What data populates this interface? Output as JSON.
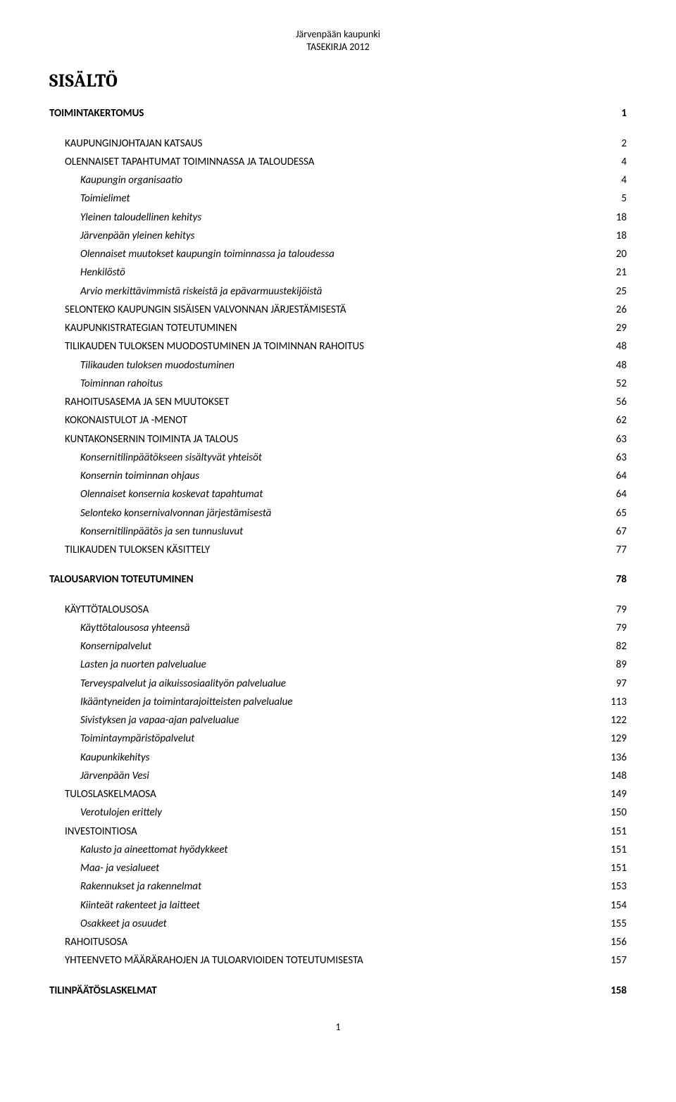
{
  "header": {
    "line1": "Järvenpään kaupunki",
    "line2": "TASEKIRJA 2012"
  },
  "title": "SISÄLTÖ",
  "footer": "1",
  "colors": {
    "background": "#ffffff",
    "text": "#000000"
  },
  "typography": {
    "body_font": "Calibri, Arial, sans-serif",
    "title_font": "Cambria, Times New Roman, serif",
    "title_size_pt": 20,
    "body_size_pt": 11
  },
  "toc": [
    {
      "label": "TOIMINTAKERTOMUS",
      "page": "1",
      "level": 1,
      "italic": false,
      "spacer_before": false
    },
    {
      "label": "KAUPUNGINJOHTAJAN KATSAUS",
      "page": "2",
      "level": 2,
      "italic": false,
      "spacer_before": true
    },
    {
      "label": "OLENNAISET TAPAHTUMAT TOIMINNASSA JA TALOUDESSA",
      "page": "4",
      "level": 2,
      "italic": false,
      "spacer_before": false
    },
    {
      "label": "Kaupungin organisaatio",
      "page": "4",
      "level": 3,
      "italic": true,
      "spacer_before": false
    },
    {
      "label": "Toimielimet",
      "page": "5",
      "level": 3,
      "italic": true,
      "spacer_before": false
    },
    {
      "label": "Yleinen taloudellinen kehitys",
      "page": "18",
      "level": 3,
      "italic": true,
      "spacer_before": false
    },
    {
      "label": "Järvenpään yleinen kehitys",
      "page": "18",
      "level": 3,
      "italic": true,
      "spacer_before": false
    },
    {
      "label": "Olennaiset muutokset kaupungin toiminnassa ja taloudessa",
      "page": "20",
      "level": 3,
      "italic": true,
      "spacer_before": false
    },
    {
      "label": "Henkilöstö",
      "page": "21",
      "level": 3,
      "italic": true,
      "spacer_before": false
    },
    {
      "label": "Arvio merkittävimmistä riskeistä ja epävarmuustekijöistä",
      "page": "25",
      "level": 3,
      "italic": true,
      "spacer_before": false
    },
    {
      "label": "SELONTEKO KAUPUNGIN SISÄISEN VALVONNAN JÄRJESTÄMISESTÄ",
      "page": "26",
      "level": 2,
      "italic": false,
      "spacer_before": false
    },
    {
      "label": "KAUPUNKISTRATEGIAN TOTEUTUMINEN",
      "page": "29",
      "level": 2,
      "italic": false,
      "spacer_before": false
    },
    {
      "label": "TILIKAUDEN TULOKSEN MUODOSTUMINEN JA TOIMINNAN RAHOITUS",
      "page": "48",
      "level": 2,
      "italic": false,
      "spacer_before": false
    },
    {
      "label": "Tilikauden tuloksen muodostuminen",
      "page": "48",
      "level": 3,
      "italic": true,
      "spacer_before": false
    },
    {
      "label": "Toiminnan rahoitus",
      "page": "52",
      "level": 3,
      "italic": true,
      "spacer_before": false
    },
    {
      "label": "RAHOITUSASEMA JA SEN MUUTOKSET",
      "page": "56",
      "level": 2,
      "italic": false,
      "spacer_before": false
    },
    {
      "label": "KOKONAISTULOT JA -MENOT",
      "page": "62",
      "level": 2,
      "italic": false,
      "spacer_before": false
    },
    {
      "label": "KUNTAKONSERNIN TOIMINTA JA TALOUS",
      "page": "63",
      "level": 2,
      "italic": false,
      "spacer_before": false
    },
    {
      "label": "Konsernitilinpäätökseen sisältyvät yhteisöt",
      "page": "63",
      "level": 3,
      "italic": true,
      "spacer_before": false
    },
    {
      "label": "Konsernin toiminnan ohjaus",
      "page": "64",
      "level": 3,
      "italic": true,
      "spacer_before": false
    },
    {
      "label": "Olennaiset konsernia koskevat tapahtumat",
      "page": "64",
      "level": 3,
      "italic": true,
      "spacer_before": false
    },
    {
      "label": "Selonteko konsernivalvonnan järjestämisestä",
      "page": "65",
      "level": 3,
      "italic": true,
      "spacer_before": false
    },
    {
      "label": "Konsernitilinpäätös ja sen tunnusluvut",
      "page": "67",
      "level": 3,
      "italic": true,
      "spacer_before": false
    },
    {
      "label": "TILIKAUDEN TULOKSEN KÄSITTELY",
      "page": "77",
      "level": 2,
      "italic": false,
      "spacer_before": false
    },
    {
      "label": "TALOUSARVION TOTEUTUMINEN",
      "page": "78",
      "level": 1,
      "italic": false,
      "spacer_before": true
    },
    {
      "label": "KÄYTTÖTALOUSOSA",
      "page": "79",
      "level": 2,
      "italic": false,
      "spacer_before": true
    },
    {
      "label": "Käyttötalousosa yhteensä",
      "page": "79",
      "level": 3,
      "italic": true,
      "spacer_before": false
    },
    {
      "label": "Konsernipalvelut",
      "page": "82",
      "level": 3,
      "italic": true,
      "spacer_before": false
    },
    {
      "label": "Lasten ja nuorten palvelualue",
      "page": "89",
      "level": 3,
      "italic": true,
      "spacer_before": false
    },
    {
      "label": "Terveyspalvelut ja aikuissosiaalityön palvelualue",
      "page": "97",
      "level": 3,
      "italic": true,
      "spacer_before": false
    },
    {
      "label": "Ikääntyneiden ja toimintarajoitteisten palvelualue",
      "page": "113",
      "level": 3,
      "italic": true,
      "spacer_before": false
    },
    {
      "label": "Sivistyksen ja vapaa-ajan palvelualue",
      "page": "122",
      "level": 3,
      "italic": true,
      "spacer_before": false
    },
    {
      "label": "Toimintaympäristöpalvelut",
      "page": "129",
      "level": 3,
      "italic": true,
      "spacer_before": false
    },
    {
      "label": "Kaupunkikehitys",
      "page": "136",
      "level": 3,
      "italic": true,
      "spacer_before": false
    },
    {
      "label": "Järvenpään Vesi",
      "page": "148",
      "level": 3,
      "italic": true,
      "spacer_before": false
    },
    {
      "label": "TULOSLASKELMAOSA",
      "page": "149",
      "level": 2,
      "italic": false,
      "spacer_before": false
    },
    {
      "label": "Verotulojen erittely",
      "page": "150",
      "level": 3,
      "italic": true,
      "spacer_before": false
    },
    {
      "label": "INVESTOINTIOSA",
      "page": "151",
      "level": 2,
      "italic": false,
      "spacer_before": false
    },
    {
      "label": "Kalusto ja aineettomat hyödykkeet",
      "page": "151",
      "level": 3,
      "italic": true,
      "spacer_before": false
    },
    {
      "label": "Maa- ja vesialueet",
      "page": "151",
      "level": 3,
      "italic": true,
      "spacer_before": false
    },
    {
      "label": "Rakennukset ja rakennelmat",
      "page": "153",
      "level": 3,
      "italic": true,
      "spacer_before": false
    },
    {
      "label": "Kiinteät rakenteet ja laitteet",
      "page": "154",
      "level": 3,
      "italic": true,
      "spacer_before": false
    },
    {
      "label": "Osakkeet ja osuudet",
      "page": "155",
      "level": 3,
      "italic": true,
      "spacer_before": false
    },
    {
      "label": "RAHOITUSOSA",
      "page": "156",
      "level": 2,
      "italic": false,
      "spacer_before": false
    },
    {
      "label": "YHTEENVETO MÄÄRÄRAHOJEN JA TULOARVIOIDEN TOTEUTUMISESTA",
      "page": "157",
      "level": 2,
      "italic": false,
      "spacer_before": false
    },
    {
      "label": "TILINPÄÄTÖSLASKELMAT",
      "page": "158",
      "level": 1,
      "italic": false,
      "spacer_before": true
    }
  ]
}
